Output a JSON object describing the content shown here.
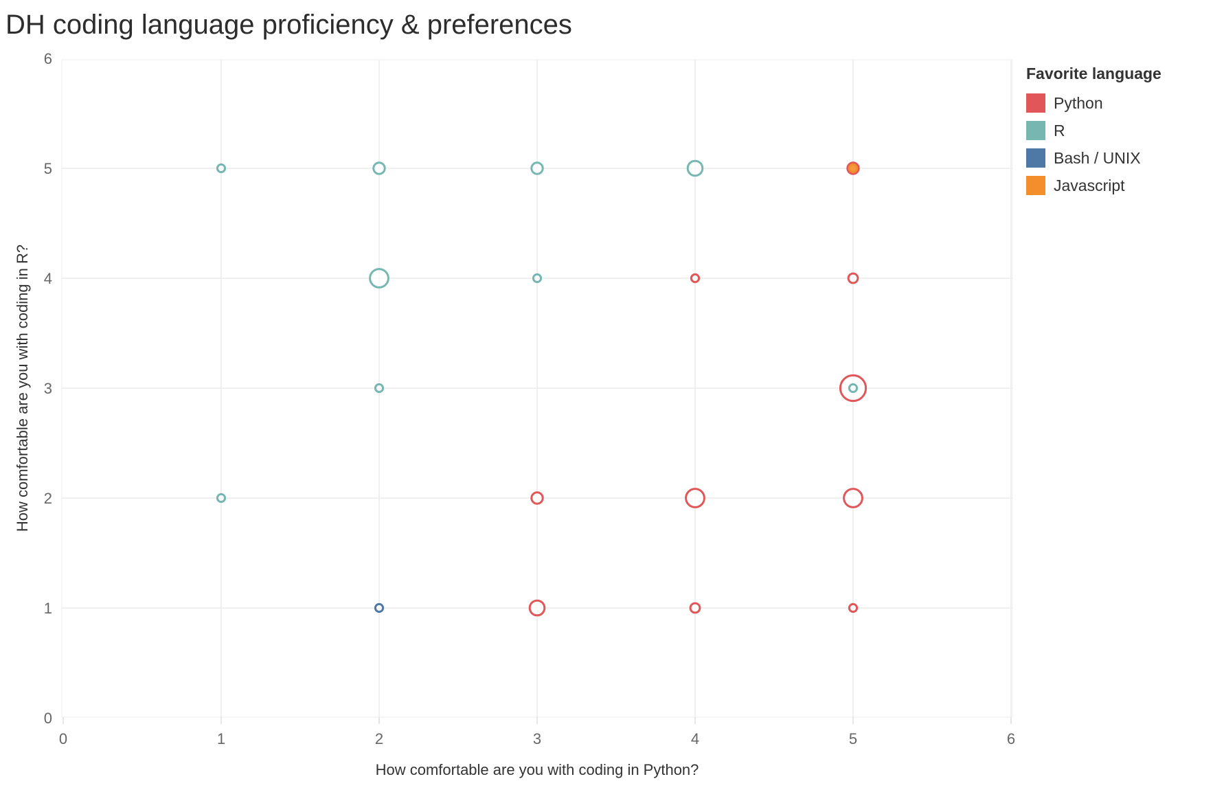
{
  "chart_data": {
    "type": "scatter",
    "title": "DH coding language proficiency & preferences",
    "xlabel": "How comfortable are you with coding in Python?",
    "ylabel": "How comfortable are you with coding in R?",
    "xlim": [
      0,
      6
    ],
    "ylim": [
      0,
      6
    ],
    "x_ticks": [
      "0",
      "1",
      "2",
      "3",
      "4",
      "5",
      "6"
    ],
    "y_ticks": [
      "0",
      "1",
      "2",
      "3",
      "4",
      "5",
      "6"
    ],
    "grid": true,
    "legend": {
      "title": "Favorite language",
      "placement": "right",
      "items": [
        {
          "name": "Python",
          "color": "#e15759"
        },
        {
          "name": "R",
          "color": "#76b7b2"
        },
        {
          "name": "Bash / UNIX",
          "color": "#4e79a7"
        },
        {
          "name": "Javascript",
          "color": "#f28e2b"
        }
      ]
    },
    "points": [
      {
        "x": 1,
        "y": 5,
        "series": "R",
        "size": 1
      },
      {
        "x": 2,
        "y": 5,
        "series": "R",
        "size": 2
      },
      {
        "x": 3,
        "y": 5,
        "series": "R",
        "size": 2
      },
      {
        "x": 4,
        "y": 5,
        "series": "R",
        "size": 3
      },
      {
        "x": 5,
        "y": 5,
        "series": "Python",
        "size": 2
      },
      {
        "x": 5,
        "y": 5,
        "series": "Javascript",
        "size": 1
      },
      {
        "x": 2,
        "y": 4,
        "series": "R",
        "size": 4
      },
      {
        "x": 3,
        "y": 4,
        "series": "R",
        "size": 1
      },
      {
        "x": 4,
        "y": 4,
        "series": "Python",
        "size": 1
      },
      {
        "x": 5,
        "y": 4,
        "series": "Python",
        "size": 1.5
      },
      {
        "x": 2,
        "y": 3,
        "series": "R",
        "size": 1
      },
      {
        "x": 5,
        "y": 3,
        "series": "Python",
        "size": 6
      },
      {
        "x": 5,
        "y": 3,
        "series": "R",
        "size": 1
      },
      {
        "x": 1,
        "y": 2,
        "series": "R",
        "size": 1
      },
      {
        "x": 3,
        "y": 2,
        "series": "Python",
        "size": 2
      },
      {
        "x": 4,
        "y": 2,
        "series": "Python",
        "size": 4
      },
      {
        "x": 5,
        "y": 2,
        "series": "Python",
        "size": 4
      },
      {
        "x": 2,
        "y": 1,
        "series": "Bash / UNIX",
        "size": 1
      },
      {
        "x": 3,
        "y": 1,
        "series": "Python",
        "size": 3
      },
      {
        "x": 4,
        "y": 1,
        "series": "Python",
        "size": 1.5
      },
      {
        "x": 5,
        "y": 1,
        "series": "Python",
        "size": 1
      }
    ]
  }
}
